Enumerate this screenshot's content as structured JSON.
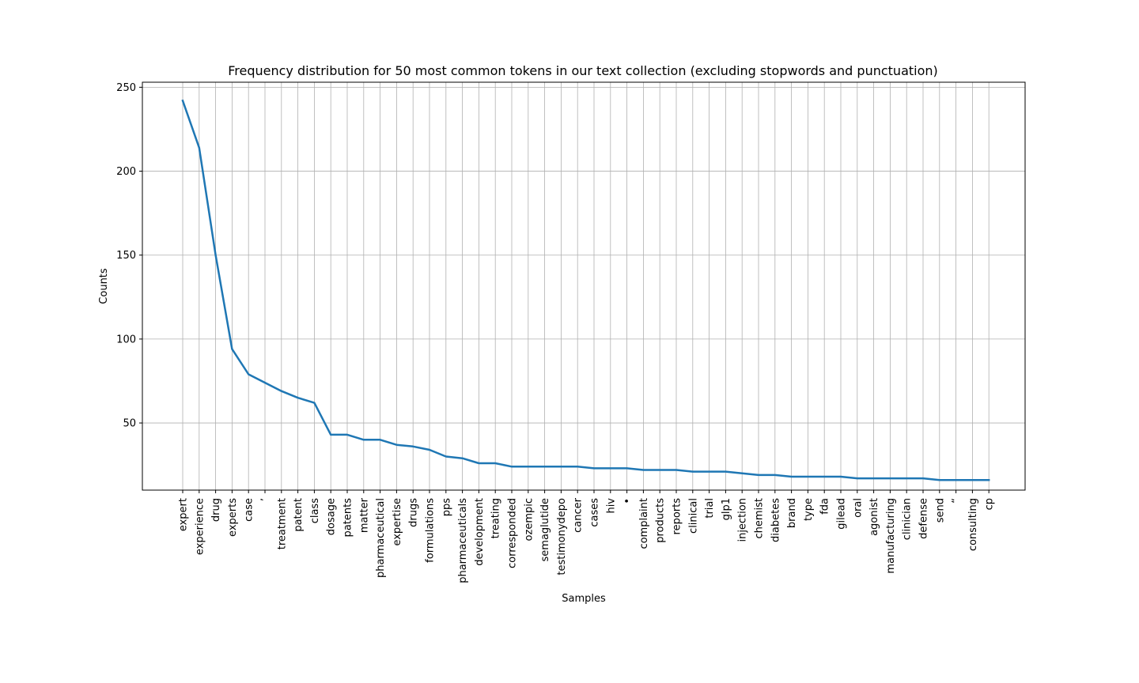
{
  "chart_data": {
    "type": "line",
    "title": "Frequency distribution for 50 most common tokens in our text collection (excluding stopwords and punctuation)",
    "xlabel": "Samples",
    "ylabel": "Counts",
    "ylim": [
      10,
      253
    ],
    "yticks": [
      50,
      100,
      150,
      200,
      250
    ],
    "grid": true,
    "colors": {
      "line": "#1f77b4",
      "grid": "#b0b0b0"
    },
    "categories": [
      "expert",
      "experience",
      "drug",
      "experts",
      "case",
      "’",
      "treatment",
      "patent",
      "class",
      "dosage",
      "patents",
      "matter",
      "pharmaceutical",
      "expertise",
      "drugs",
      "formulations",
      "pps",
      "pharmaceuticals",
      "development",
      "treating",
      "corresponded",
      "ozempic",
      "semaglutide",
      "testimonydepo",
      "cancer",
      "cases",
      "hiv",
      "•",
      "complaint",
      "products",
      "reports",
      "clinical",
      "trial",
      "glp1",
      "injection",
      "chemist",
      "diabetes",
      "brand",
      "type",
      "fda",
      "gilead",
      "oral",
      "agonist",
      "manufacturing",
      "clinician",
      "defense",
      "send",
      "“",
      "consulting",
      "cp"
    ],
    "values": [
      242,
      214,
      150,
      94,
      79,
      74,
      69,
      65,
      62,
      43,
      43,
      40,
      40,
      37,
      36,
      34,
      30,
      29,
      26,
      26,
      24,
      24,
      24,
      24,
      24,
      23,
      23,
      23,
      22,
      22,
      22,
      21,
      21,
      21,
      20,
      19,
      19,
      18,
      18,
      18,
      18,
      17,
      17,
      17,
      17,
      17,
      16,
      16,
      16,
      16
    ]
  }
}
